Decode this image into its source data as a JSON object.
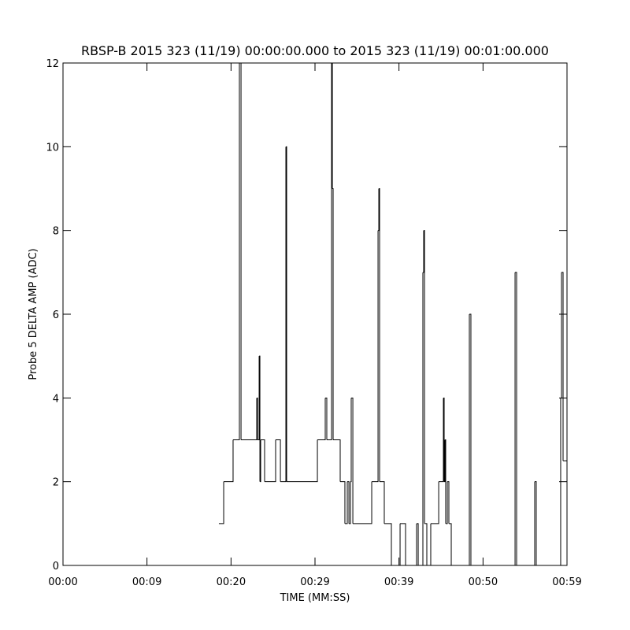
{
  "chart_data": {
    "type": "step",
    "title": "RBSP-B 2015 323 (11/19) 00:00:00.000 to 2015 323 (11/19) 00:01:00.000",
    "x_label": "TIME (MM:SS)",
    "y_label": "Probe 5 DELTA AMP (ADC)",
    "xlim": [
      0,
      59
    ],
    "xticks": [
      {
        "value": 0,
        "label": "00:00"
      },
      {
        "value": 9.83,
        "label": "00:09"
      },
      {
        "value": 19.67,
        "label": "00:20"
      },
      {
        "value": 29.5,
        "label": "00:29"
      },
      {
        "value": 39.33,
        "label": "00:39"
      },
      {
        "value": 49.17,
        "label": "00:50"
      },
      {
        "value": 59,
        "label": "00:59"
      }
    ],
    "ylim": [
      0,
      12
    ],
    "yticks": [
      0,
      2,
      4,
      6,
      8,
      10,
      12
    ],
    "color": "#000000",
    "x": [
      18.25,
      18.81,
      19.91,
      20.65,
      20.84,
      22.68,
      22.77,
      22.96,
      23.05,
      23.14,
      23.6,
      24.89,
      25.45,
      26.09,
      26.18,
      29.78,
      30.7,
      30.88,
      31.44,
      31.53,
      31.62,
      32.45,
      33.0,
      33.28,
      33.47,
      33.65,
      33.74,
      33.93,
      36.14,
      36.88,
      36.97,
      37.06,
      37.61,
      38.44,
      39.46,
      40.1,
      41.39,
      41.58,
      42.13,
      42.22,
      42.32,
      42.59,
      43.05,
      43.98,
      44.53,
      44.62,
      44.71,
      44.8,
      44.99,
      45.17,
      45.45,
      47.57,
      47.75,
      52.92,
      53.1,
      55.22,
      55.4,
      58.26,
      58.36,
      58.54
    ],
    "values": [
      1,
      2,
      3,
      12,
      3,
      4,
      3,
      5,
      2,
      3,
      2,
      3,
      2,
      10,
      2,
      3,
      4,
      3,
      12,
      9,
      3,
      2,
      1,
      2,
      1,
      2,
      4,
      1,
      2,
      8,
      9,
      2,
      1,
      0,
      1,
      0,
      1,
      0,
      7,
      8,
      1,
      0,
      1,
      2,
      4,
      2,
      3,
      1,
      2,
      1,
      0,
      6,
      0,
      7,
      0,
      2,
      0,
      4,
      7,
      2.5
    ]
  }
}
